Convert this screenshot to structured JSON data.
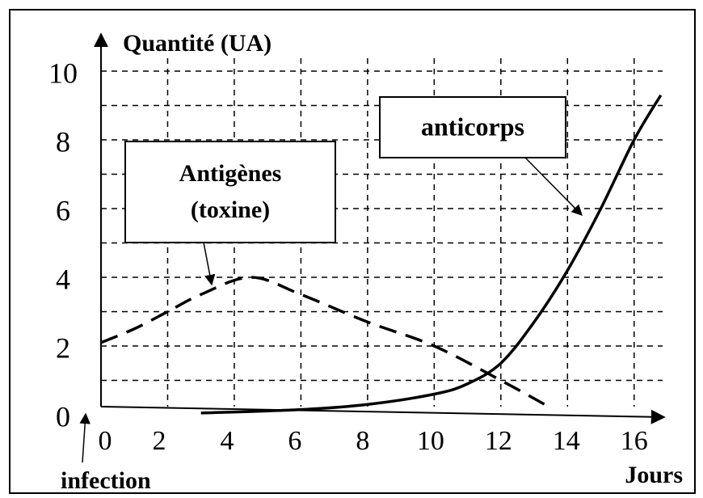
{
  "chart_data": {
    "type": "line",
    "y_label": "Quantité (UA)",
    "x_label": "Jours",
    "xlim": [
      0,
      17
    ],
    "ylim": [
      0,
      10
    ],
    "xticks": [
      0,
      2,
      4,
      6,
      8,
      10,
      12,
      14,
      16
    ],
    "yticks": [
      0,
      2,
      4,
      6,
      8,
      10
    ],
    "grid": true,
    "series": [
      {
        "color": "#000000",
        "dashed": true,
        "x": [
          0,
          1,
          2,
          3,
          4.5,
          6,
          8,
          10,
          12,
          13.5
        ],
        "values": [
          2.1,
          2.5,
          3.0,
          3.5,
          4.0,
          3.5,
          2.7,
          2.0,
          1.0,
          0.2
        ]
      },
      {
        "color": "#000000",
        "dashed": false,
        "x": [
          3,
          6,
          8,
          10,
          11,
          12,
          13,
          14,
          15,
          16,
          16.8
        ],
        "values": [
          0.05,
          0.15,
          0.3,
          0.6,
          0.9,
          1.5,
          2.7,
          4.2,
          6.0,
          8.0,
          9.3
        ]
      }
    ],
    "annotations": [
      {
        "lines": [
          "Antigènes",
          "(toxine)"
        ]
      },
      {
        "lines": [
          "anticorps"
        ]
      },
      {
        "lines": [
          "infection"
        ]
      }
    ]
  }
}
